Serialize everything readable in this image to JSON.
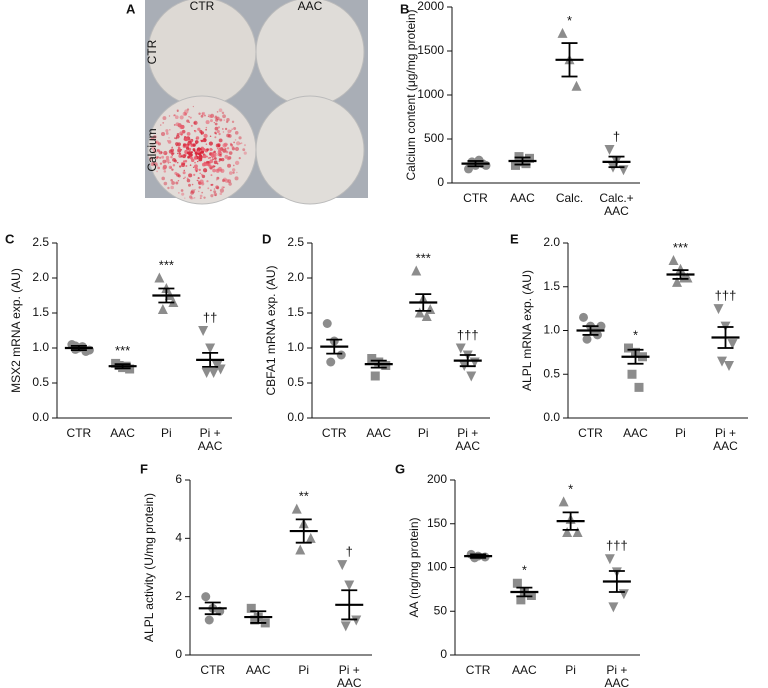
{
  "image_panel": {
    "panel": "A",
    "columns": [
      "CTR",
      "AAC"
    ],
    "rows": [
      "CTR",
      "Calcium"
    ]
  },
  "chart_data": [
    {
      "type": "dotplot",
      "panel": "B",
      "ylabel": "Calcium content (μg/mg protein)",
      "categories": [
        "CTR",
        "AAC",
        "Calc.",
        "Calc.+\nAAC"
      ],
      "points": [
        [
          160,
          200,
          220,
          240,
          260,
          200
        ],
        [
          200,
          240,
          280,
          300,
          220
        ],
        [
          1700,
          1400,
          1100
        ],
        [
          380,
          250,
          150,
          180
        ]
      ],
      "means": [
        220,
        250,
        1400,
        240
      ],
      "errors": [
        30,
        40,
        190,
        60
      ],
      "annotations": [
        null,
        null,
        "*",
        "†"
      ],
      "markers": [
        "circle",
        "square",
        "triangle",
        "triangle-down"
      ],
      "color": "#8c8c8c",
      "ylim": [
        0,
        2000
      ],
      "yticks": [
        0,
        500,
        1000,
        1500,
        2000
      ]
    },
    {
      "type": "dotplot",
      "panel": "C",
      "ylabel": "MSX2 mRNA exp. (AU)",
      "categories": [
        "CTR",
        "AAC",
        "Pi",
        "Pi +\nAAC"
      ],
      "points": [
        [
          1.05,
          1.0,
          0.95,
          0.98,
          1.02,
          0.97,
          1.03
        ],
        [
          0.78,
          0.72,
          0.7,
          0.75,
          0.74
        ],
        [
          2.0,
          1.85,
          1.65,
          1.55,
          1.75
        ],
        [
          1.25,
          1.0,
          0.75,
          0.65,
          0.65,
          0.7
        ]
      ],
      "means": [
        1.0,
        0.74,
        1.75,
        0.83
      ],
      "errors": [
        0.03,
        0.03,
        0.1,
        0.1
      ],
      "annotations": [
        null,
        "***",
        "***",
        "††"
      ],
      "markers": [
        "circle",
        "square",
        "triangle",
        "triangle-down"
      ],
      "color": "#8c8c8c",
      "ylim": [
        0,
        2.5
      ],
      "yticks": [
        {
          "value": 0,
          "label": "0.0"
        },
        0.5,
        {
          "value": 1,
          "label": "1.0"
        },
        1.5,
        {
          "value": 2,
          "label": "2.0"
        },
        2.5
      ]
    },
    {
      "type": "dotplot",
      "panel": "D",
      "ylabel": "CBFA1 mRNA exp. (AU)",
      "categories": [
        "CTR",
        "AAC",
        "Pi",
        "Pi +\nAAC"
      ],
      "points": [
        [
          1.35,
          1.1,
          0.9,
          0.8
        ],
        [
          0.85,
          0.8,
          0.75,
          0.6
        ],
        [
          2.1,
          1.7,
          1.55,
          1.5,
          1.45
        ],
        [
          1.0,
          0.9,
          0.8,
          0.75,
          0.6
        ]
      ],
      "means": [
        1.02,
        0.77,
        1.65,
        0.82
      ],
      "errors": [
        0.1,
        0.05,
        0.12,
        0.08
      ],
      "annotations": [
        null,
        null,
        "***",
        "†††"
      ],
      "markers": [
        "circle",
        "square",
        "triangle",
        "triangle-down"
      ],
      "color": "#8c8c8c",
      "ylim": [
        0,
        2.5
      ],
      "yticks": [
        {
          "value": 0,
          "label": "0.0"
        },
        0.5,
        {
          "value": 1,
          "label": "1.0"
        },
        1.5,
        {
          "value": 2,
          "label": "2.0"
        },
        2.5
      ]
    },
    {
      "type": "dotplot",
      "panel": "E",
      "ylabel": "ALPL mRNA exp. (AU)",
      "categories": [
        "CTR",
        "AAC",
        "Pi",
        "Pi +\nAAC"
      ],
      "points": [
        [
          1.15,
          1.05,
          0.95,
          0.9,
          1.0,
          1.05
        ],
        [
          0.8,
          0.75,
          0.7,
          0.5,
          0.35
        ],
        [
          1.8,
          1.7,
          1.6,
          1.55,
          1.6
        ],
        [
          1.25,
          1.05,
          0.85,
          0.65,
          0.6
        ]
      ],
      "means": [
        1.0,
        0.7,
        1.64,
        0.92
      ],
      "errors": [
        0.05,
        0.08,
        0.05,
        0.12
      ],
      "annotations": [
        null,
        "*",
        "***",
        "†††"
      ],
      "markers": [
        "circle",
        "square",
        "triangle",
        "triangle-down"
      ],
      "color": "#8c8c8c",
      "ylim": [
        0,
        2
      ],
      "yticks": [
        {
          "value": 0,
          "label": "0.0"
        },
        0.5,
        {
          "value": 1,
          "label": "1.0"
        },
        1.5,
        {
          "value": 2,
          "label": "2.0"
        }
      ]
    },
    {
      "type": "dotplot",
      "panel": "F",
      "ylabel": "ALPL activity (U/mg protein)",
      "categories": [
        "CTR",
        "AAC",
        "Pi",
        "Pi +\nAAC"
      ],
      "points": [
        [
          2.0,
          1.6,
          1.5,
          1.2
        ],
        [
          1.6,
          1.3,
          1.1,
          1.2
        ],
        [
          5.0,
          4.5,
          4.0,
          3.6
        ],
        [
          3.1,
          2.4,
          1.2,
          1.0
        ]
      ],
      "means": [
        1.6,
        1.3,
        4.25,
        1.72
      ],
      "errors": [
        0.2,
        0.2,
        0.4,
        0.5
      ],
      "annotations": [
        null,
        null,
        "**",
        "†"
      ],
      "markers": [
        "circle",
        "square",
        "triangle",
        "triangle-down"
      ],
      "color": "#8c8c8c",
      "ylim": [
        0,
        6
      ],
      "yticks": [
        0,
        2,
        4,
        6
      ]
    },
    {
      "type": "dotplot",
      "panel": "G",
      "ylabel": "AA (ng/mg protein)",
      "categories": [
        "CTR",
        "AAC",
        "Pi",
        "Pi +\nAAC"
      ],
      "points": [
        [
          115,
          113,
          112,
          111
        ],
        [
          82,
          72,
          68,
          63
        ],
        [
          175,
          155,
          140,
          140
        ],
        [
          110,
          95,
          70,
          55
        ]
      ],
      "means": [
        113,
        72,
        153,
        84
      ],
      "errors": [
        2,
        5,
        10,
        12
      ],
      "annotations": [
        null,
        "*",
        "*",
        "†††"
      ],
      "markers": [
        "circle",
        "square",
        "triangle",
        "triangle-down"
      ],
      "color": "#8c8c8c",
      "ylim": [
        0,
        200
      ],
      "yticks": [
        0,
        50,
        100,
        150,
        200
      ]
    }
  ]
}
